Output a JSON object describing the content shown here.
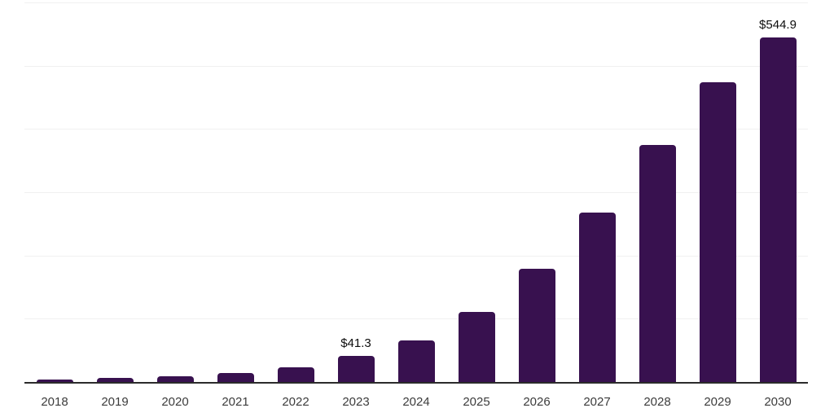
{
  "chart_data": {
    "type": "bar",
    "title": "",
    "categories": [
      "2018",
      "2019",
      "2020",
      "2021",
      "2022",
      "2023",
      "2024",
      "2025",
      "2026",
      "2027",
      "2028",
      "2029",
      "2030"
    ],
    "values": [
      3.8,
      6.4,
      9.0,
      14.0,
      23.3,
      41.3,
      65.2,
      111.4,
      179.0,
      267.3,
      374.8,
      473.3,
      544.9
    ],
    "data_labels": {
      "2023": "$41.3",
      "2030": "$544.9"
    },
    "xlabel": "",
    "ylabel": "",
    "ylim": [
      0,
      600
    ],
    "gridline_interval": 100,
    "grid": true,
    "legend": false,
    "y_axis_labels_visible": false,
    "colors": {
      "bar": "#38114f",
      "axis": "#2b2b2b",
      "gridline": "#f0f0f0",
      "tick_label": "#3c3c3c",
      "value_label": "#0d0d0d",
      "background": "#ffffff"
    }
  }
}
